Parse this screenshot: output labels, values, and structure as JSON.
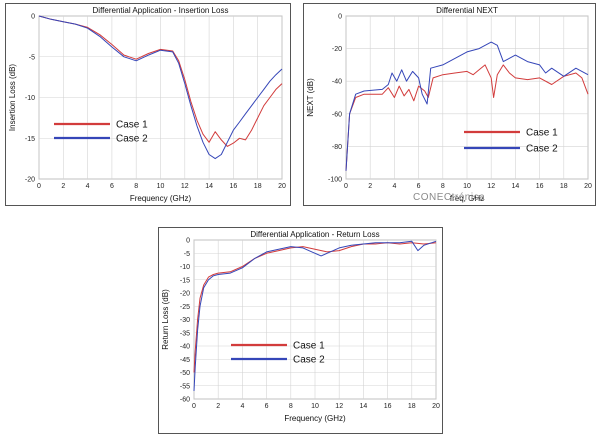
{
  "watermark": "CONECtrónica",
  "chart_data": [
    {
      "type": "line",
      "title": "Differential Application - Insertion Loss",
      "xlabel": "Frequency (GHz)",
      "ylabel": "Insertion Loss (dB)",
      "xlim": [
        0,
        20
      ],
      "ylim": [
        -20,
        0
      ],
      "xticks": [
        0,
        2,
        4,
        6,
        8,
        10,
        12,
        14,
        16,
        18,
        20
      ],
      "yticks": [
        0,
        -5,
        -10,
        -15,
        -20
      ],
      "grid": true,
      "legend_position": "center-left",
      "series": [
        {
          "name": "Case 1",
          "color": "#d23c3c",
          "x": [
            0,
            1,
            2,
            3,
            4,
            5,
            6,
            7,
            8,
            9,
            10,
            11,
            11.5,
            12,
            12.5,
            13,
            13.5,
            14,
            14.5,
            15,
            15.5,
            16,
            16.5,
            17,
            17.5,
            18,
            18.5,
            19,
            19.5,
            20
          ],
          "y": [
            0,
            -0.4,
            -0.7,
            -1.0,
            -1.4,
            -2.3,
            -3.5,
            -4.8,
            -5.3,
            -4.6,
            -4.1,
            -4.3,
            -5.5,
            -7.8,
            -10.5,
            -12.8,
            -14.5,
            -15.5,
            -14.2,
            -15.2,
            -16.0,
            -15.6,
            -15.0,
            -15.2,
            -14.0,
            -12.5,
            -11.0,
            -10.0,
            -9.0,
            -8.3
          ]
        },
        {
          "name": "Case 2",
          "color": "#3546b8",
          "x": [
            0,
            1,
            2,
            3,
            4,
            5,
            6,
            7,
            8,
            9,
            10,
            11,
            11.5,
            12,
            12.5,
            13,
            13.5,
            14,
            14.5,
            15,
            15.5,
            16,
            16.5,
            17,
            17.5,
            18,
            18.5,
            19,
            19.5,
            20
          ],
          "y": [
            0,
            -0.4,
            -0.7,
            -1.0,
            -1.5,
            -2.5,
            -3.8,
            -5.0,
            -5.5,
            -4.8,
            -4.2,
            -4.4,
            -5.8,
            -8.3,
            -11.0,
            -13.5,
            -15.5,
            -17.0,
            -17.5,
            -17.0,
            -15.5,
            -14.0,
            -13.0,
            -12.0,
            -11.0,
            -10.0,
            -9.0,
            -8.0,
            -7.2,
            -6.5
          ]
        }
      ]
    },
    {
      "type": "line",
      "title": "Differential NEXT",
      "xlabel": "freq, GHz",
      "ylabel": "NEXT (dB)",
      "xlim": [
        0,
        20
      ],
      "ylim": [
        -100,
        0
      ],
      "xticks": [
        0,
        2,
        4,
        6,
        8,
        10,
        12,
        14,
        16,
        18,
        20
      ],
      "yticks": [
        0,
        -20,
        -40,
        -60,
        -80,
        -100
      ],
      "grid": true,
      "legend_position": "bottom-right",
      "series": [
        {
          "name": "Case 1",
          "color": "#d23c3c",
          "x": [
            0,
            0.3,
            0.8,
            1.5,
            3,
            3.5,
            4,
            4.4,
            4.8,
            5.2,
            5.6,
            6.0,
            6.5,
            6.8,
            7.2,
            8,
            9,
            10,
            10.5,
            11,
            11.5,
            12,
            12.2,
            12.5,
            13,
            13.5,
            14,
            15,
            16,
            17,
            18,
            19,
            19.5,
            20
          ],
          "y": [
            -95,
            -60,
            -50,
            -48,
            -48,
            -44,
            -50,
            -43,
            -49,
            -45,
            -52,
            -43,
            -46,
            -50,
            -38,
            -36,
            -35,
            -34,
            -36,
            -33,
            -30,
            -38,
            -50,
            -36,
            -30,
            -35,
            -38,
            -39,
            -38,
            -42,
            -37,
            -35,
            -38,
            -48
          ]
        },
        {
          "name": "Case 2",
          "color": "#3546b8",
          "x": [
            0,
            0.3,
            0.8,
            1.5,
            3,
            3.5,
            3.8,
            4.2,
            4.6,
            5,
            5.5,
            6,
            6.3,
            6.7,
            7,
            8,
            9,
            10,
            11,
            12,
            12.5,
            13,
            14,
            15,
            16,
            16.5,
            17,
            18,
            19,
            19.5,
            20
          ],
          "y": [
            -95,
            -60,
            -48,
            -46,
            -45,
            -42,
            -35,
            -40,
            -33,
            -40,
            -34,
            -38,
            -48,
            -54,
            -32,
            -30,
            -26,
            -22,
            -20,
            -16,
            -18,
            -28,
            -24,
            -28,
            -30,
            -35,
            -32,
            -37,
            -32,
            -34,
            -36
          ]
        }
      ]
    },
    {
      "type": "line",
      "title": "Differential Application - Return Loss",
      "xlabel": "Frequency (GHz)",
      "ylabel": "Return Loss (dB)",
      "xlim": [
        0,
        20
      ],
      "ylim": [
        -60,
        0
      ],
      "xticks": [
        0,
        2,
        4,
        6,
        8,
        10,
        12,
        14,
        16,
        18,
        20
      ],
      "yticks": [
        0,
        -5,
        -10,
        -15,
        -20,
        -25,
        -30,
        -35,
        -40,
        -45,
        -50,
        -55,
        -60
      ],
      "grid": true,
      "legend_position": "center-left",
      "series": [
        {
          "name": "Case 1",
          "color": "#d23c3c",
          "x": [
            0,
            0.1,
            0.3,
            0.5,
            0.8,
            1.2,
            1.6,
            2,
            3,
            4,
            5,
            6,
            7,
            8,
            9,
            10,
            11,
            12,
            13,
            14,
            15,
            16,
            17,
            18,
            19,
            20
          ],
          "y": [
            -50,
            -42,
            -30,
            -22,
            -17,
            -14,
            -13,
            -12.5,
            -12,
            -10,
            -7,
            -5,
            -4,
            -3,
            -2.5,
            -3.5,
            -4.5,
            -4,
            -2.5,
            -1.5,
            -1.5,
            -1,
            -1.5,
            -1,
            -1.5,
            -1
          ]
        },
        {
          "name": "Case 2",
          "color": "#3546b8",
          "x": [
            0,
            0.1,
            0.3,
            0.5,
            0.8,
            1.2,
            1.6,
            2,
            3,
            4,
            5,
            6,
            7,
            8,
            9,
            10,
            10.5,
            11,
            12,
            13,
            14,
            15,
            16,
            17,
            18,
            18.5,
            19,
            20
          ],
          "y": [
            -57,
            -48,
            -34,
            -25,
            -18,
            -15,
            -13.5,
            -13,
            -12.5,
            -10.5,
            -7,
            -4.5,
            -3.5,
            -2.5,
            -3,
            -5,
            -6,
            -5,
            -3,
            -2,
            -1.5,
            -1,
            -1,
            -1,
            -0.5,
            -4,
            -2,
            -0.5
          ]
        }
      ]
    }
  ]
}
